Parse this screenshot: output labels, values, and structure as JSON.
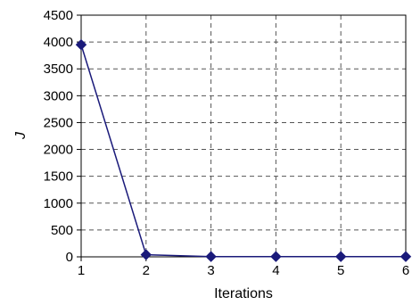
{
  "chart_data": {
    "type": "line",
    "xlabel": "Iterations",
    "ylabel": "J",
    "x": [
      1,
      2,
      3,
      4,
      5,
      6
    ],
    "series": [
      {
        "values": [
          3950,
          40,
          5,
          5,
          5,
          5
        ],
        "color": "#1a1a7a",
        "marker": "diamond"
      }
    ],
    "xlim": [
      1,
      6
    ],
    "ylim": [
      0,
      4500
    ],
    "xticks": [
      "1",
      "2",
      "3",
      "4",
      "5",
      "6"
    ],
    "yticks": [
      "0",
      "500",
      "1000",
      "1500",
      "2000",
      "2500",
      "3000",
      "3500",
      "4000",
      "4500"
    ],
    "grid": true,
    "grid_style": "dashed"
  }
}
